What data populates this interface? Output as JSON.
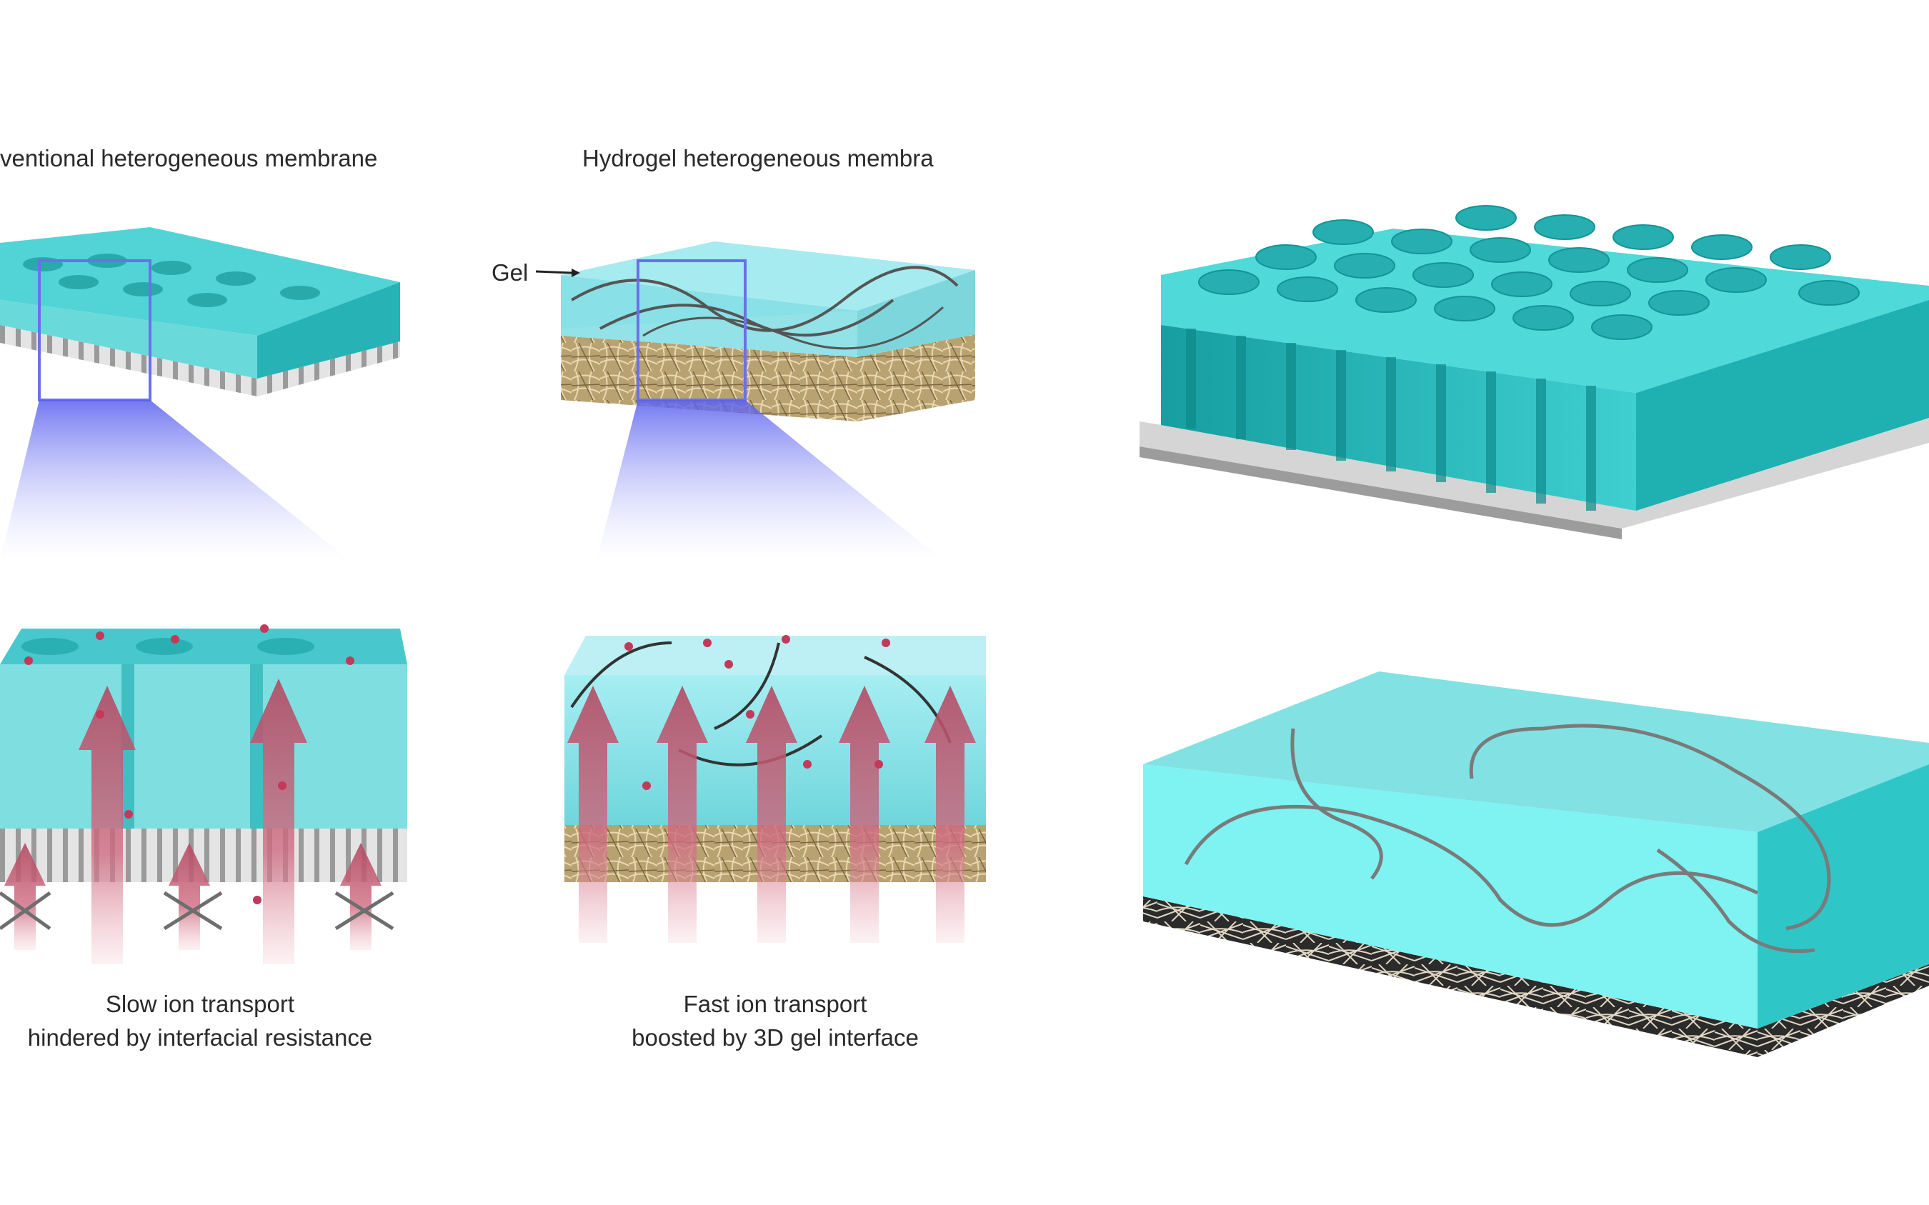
{
  "left_panel": {
    "titles": {
      "conventional": "ventional heterogeneous membrane",
      "hydrogel": "Hydrogel heterogeneous membra"
    },
    "gel_label": "Gel",
    "captions": {
      "slow": [
        "Slow ion transport",
        "hindered by interfacial resistance"
      ],
      "fast": [
        "Fast ion transport",
        "boosted by 3D gel interface"
      ]
    }
  },
  "colors": {
    "teal_top": "#48d6d6",
    "teal_side": "#2bbfc0",
    "teal_dark": "#138f91",
    "gel": "#7ff0f0",
    "support_gray": "#bdbdbd",
    "arrow_pink": "#c8566e",
    "zoom_blue": "#7a80f0",
    "fiber_tan": "#c8b48a",
    "fiber_dark": "#4a4a4a"
  }
}
